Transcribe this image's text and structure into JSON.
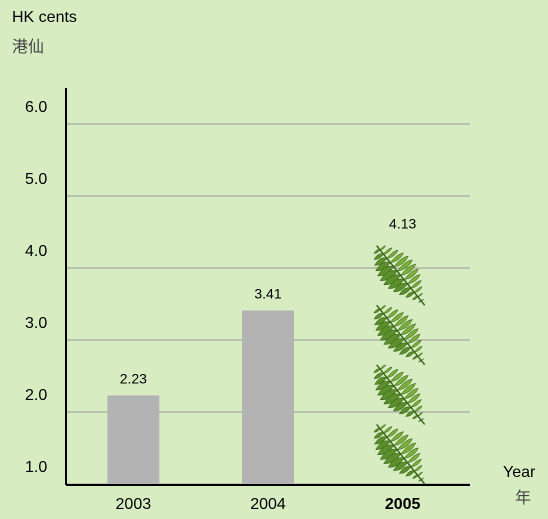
{
  "chart_data": {
    "type": "bar",
    "y_label": "HK cents",
    "y_label_zh": "港仙",
    "x_label": "Year",
    "x_label_zh": "年",
    "categories": [
      "2003",
      "2004",
      "2005"
    ],
    "values": [
      2.23,
      3.41,
      4.13
    ],
    "color": "#b3b3b3",
    "highlight_color": "#4f8a25",
    "ylim": [
      1,
      6.5
    ],
    "yticks": [
      {
        "value": 1,
        "label": "1.0"
      },
      {
        "value": 2,
        "label": "2.0"
      },
      {
        "value": 3,
        "label": "3.0"
      },
      {
        "value": 4,
        "label": "4.0"
      },
      {
        "value": 5,
        "label": "5.0"
      },
      {
        "value": 6,
        "label": "6.0"
      }
    ],
    "grid": true
  }
}
